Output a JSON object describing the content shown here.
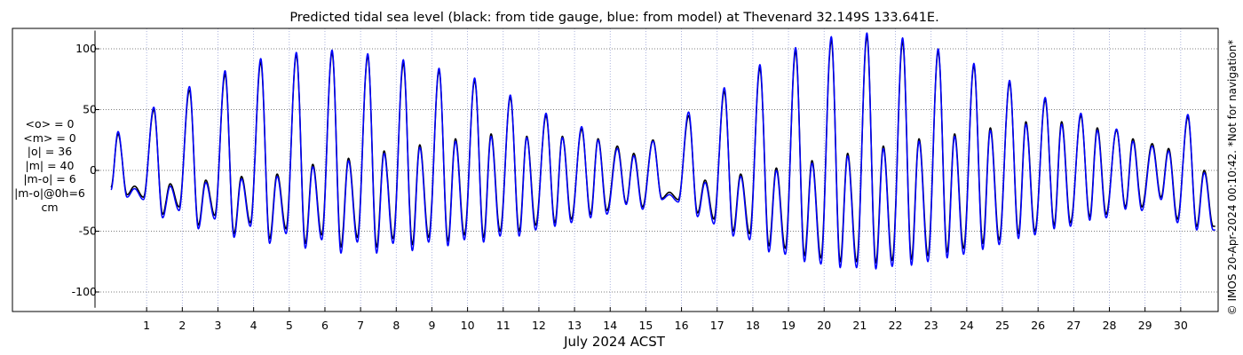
{
  "chart_data": {
    "type": "line",
    "title": "Predicted tidal sea level (black: from tide gauge, blue: from model) at Thevenard 32.149S 133.641E.",
    "xlabel": "July 2024 ACST",
    "ylabel": "",
    "xlim": [
      0,
      31
    ],
    "ylim": [
      -110,
      115
    ],
    "x_ticks": [
      1,
      2,
      3,
      4,
      5,
      6,
      7,
      8,
      9,
      10,
      11,
      12,
      13,
      14,
      15,
      16,
      17,
      18,
      19,
      20,
      21,
      22,
      23,
      24,
      25,
      26,
      27,
      28,
      29,
      30
    ],
    "x_tick_labels": [
      "1",
      "2",
      "3",
      "4",
      "5",
      "6",
      "7",
      "8",
      "9",
      "10",
      "11",
      "12",
      "13",
      "14",
      "15",
      "16",
      "17",
      "18",
      "19",
      "20",
      "21",
      "22",
      "23",
      "24",
      "25",
      "26",
      "27",
      "28",
      "29",
      "30"
    ],
    "y_ticks": [
      -100,
      -50,
      0,
      50,
      100
    ],
    "y_tick_labels": [
      "-100",
      "-50",
      "0",
      "50",
      "100"
    ],
    "grid": true,
    "series": [
      {
        "color": "#000000",
        "tides": [
          {
            "hw1": 30,
            "lw1": -20,
            "hw2": -13,
            "lw2": -22
          },
          {
            "hw1": 50,
            "lw1": -36,
            "hw2": -11,
            "lw2": -30
          },
          {
            "hw1": 66,
            "lw1": -45,
            "hw2": -8,
            "lw2": -37
          },
          {
            "hw1": 79,
            "lw1": -52,
            "hw2": -5,
            "lw2": -43
          },
          {
            "hw1": 89,
            "lw1": -56,
            "hw2": -3,
            "lw2": -48
          },
          {
            "hw1": 95,
            "lw1": -60,
            "hw2": 5,
            "lw2": -53
          },
          {
            "hw1": 97,
            "lw1": -63,
            "hw2": 10,
            "lw2": -55
          },
          {
            "hw1": 94,
            "lw1": -63,
            "hw2": 16,
            "lw2": -56
          },
          {
            "hw1": 88,
            "lw1": -61,
            "hw2": 21,
            "lw2": -55
          },
          {
            "hw1": 82,
            "lw1": -58,
            "hw2": 26,
            "lw2": -53
          },
          {
            "hw1": 74,
            "lw1": -55,
            "hw2": 30,
            "lw2": -50
          },
          {
            "hw1": 60,
            "lw1": -50,
            "hw2": 28,
            "lw2": -45
          },
          {
            "hw1": 45,
            "lw1": -43,
            "hw2": 28,
            "lw2": -40
          },
          {
            "hw1": 34,
            "lw1": -36,
            "hw2": 26,
            "lw2": -33
          },
          {
            "hw1": 20,
            "lw1": -27,
            "hw2": 14,
            "lw2": -30
          },
          {
            "hw1": 25,
            "lw1": -23,
            "hw2": -18,
            "lw2": -24
          },
          {
            "hw1": 45,
            "lw1": -35,
            "hw2": -8,
            "lw2": -40
          },
          {
            "hw1": 65,
            "lw1": -50,
            "hw2": -3,
            "lw2": -52
          },
          {
            "hw1": 84,
            "lw1": -62,
            "hw2": 2,
            "lw2": -64
          },
          {
            "hw1": 98,
            "lw1": -70,
            "hw2": 8,
            "lw2": -72
          },
          {
            "hw1": 107,
            "lw1": -75,
            "hw2": 14,
            "lw2": -75
          },
          {
            "hw1": 110,
            "lw1": -76,
            "hw2": 20,
            "lw2": -74
          },
          {
            "hw1": 106,
            "lw1": -73,
            "hw2": 26,
            "lw2": -70
          },
          {
            "hw1": 98,
            "lw1": -67,
            "hw2": 30,
            "lw2": -64
          },
          {
            "hw1": 86,
            "lw1": -60,
            "hw2": 35,
            "lw2": -57
          },
          {
            "hw1": 72,
            "lw1": -52,
            "hw2": 40,
            "lw2": -50
          },
          {
            "hw1": 58,
            "lw1": -45,
            "hw2": 40,
            "lw2": -43
          },
          {
            "hw1": 45,
            "lw1": -38,
            "hw2": 35,
            "lw2": -36
          },
          {
            "hw1": 33,
            "lw1": -30,
            "hw2": 26,
            "lw2": -30
          },
          {
            "hw1": 22,
            "lw1": -22,
            "hw2": 18,
            "lw2": -40
          },
          {
            "hw1": 44,
            "lw1": -46,
            "hw2": 0,
            "lw2": -46
          }
        ]
      },
      {
        "color": "#0000ff",
        "tides": [
          {
            "hw1": 32,
            "lw1": -22,
            "hw2": -15,
            "lw2": -24
          },
          {
            "hw1": 52,
            "lw1": -39,
            "hw2": -13,
            "lw2": -33
          },
          {
            "hw1": 69,
            "lw1": -48,
            "hw2": -10,
            "lw2": -40
          },
          {
            "hw1": 82,
            "lw1": -55,
            "hw2": -7,
            "lw2": -46
          },
          {
            "hw1": 92,
            "lw1": -60,
            "hw2": -5,
            "lw2": -52
          },
          {
            "hw1": 97,
            "lw1": -64,
            "hw2": 3,
            "lw2": -57
          },
          {
            "hw1": 99,
            "lw1": -68,
            "hw2": 8,
            "lw2": -59
          },
          {
            "hw1": 96,
            "lw1": -68,
            "hw2": 14,
            "lw2": -60
          },
          {
            "hw1": 91,
            "lw1": -66,
            "hw2": 19,
            "lw2": -59
          },
          {
            "hw1": 84,
            "lw1": -62,
            "hw2": 24,
            "lw2": -57
          },
          {
            "hw1": 76,
            "lw1": -59,
            "hw2": 28,
            "lw2": -54
          },
          {
            "hw1": 62,
            "lw1": -54,
            "hw2": 27,
            "lw2": -49
          },
          {
            "hw1": 47,
            "lw1": -46,
            "hw2": 27,
            "lw2": -43
          },
          {
            "hw1": 36,
            "lw1": -39,
            "hw2": 25,
            "lw2": -36
          },
          {
            "hw1": 18,
            "lw1": -28,
            "hw2": 12,
            "lw2": -32
          },
          {
            "hw1": 24,
            "lw1": -24,
            "hw2": -20,
            "lw2": -26
          },
          {
            "hw1": 48,
            "lw1": -38,
            "hw2": -10,
            "lw2": -44
          },
          {
            "hw1": 68,
            "lw1": -54,
            "hw2": -5,
            "lw2": -57
          },
          {
            "hw1": 87,
            "lw1": -67,
            "hw2": 0,
            "lw2": -69
          },
          {
            "hw1": 101,
            "lw1": -75,
            "hw2": 6,
            "lw2": -77
          },
          {
            "hw1": 110,
            "lw1": -80,
            "hw2": 12,
            "lw2": -80
          },
          {
            "hw1": 113,
            "lw1": -81,
            "hw2": 18,
            "lw2": -79
          },
          {
            "hw1": 109,
            "lw1": -78,
            "hw2": 24,
            "lw2": -75
          },
          {
            "hw1": 100,
            "lw1": -72,
            "hw2": 28,
            "lw2": -69
          },
          {
            "hw1": 88,
            "lw1": -65,
            "hw2": 33,
            "lw2": -61
          },
          {
            "hw1": 74,
            "lw1": -56,
            "hw2": 38,
            "lw2": -53
          },
          {
            "hw1": 60,
            "lw1": -48,
            "hw2": 38,
            "lw2": -46
          },
          {
            "hw1": 47,
            "lw1": -41,
            "hw2": 33,
            "lw2": -39
          },
          {
            "hw1": 34,
            "lw1": -32,
            "hw2": 24,
            "lw2": -33
          },
          {
            "hw1": 20,
            "lw1": -24,
            "hw2": 16,
            "lw2": -43
          },
          {
            "hw1": 46,
            "lw1": -49,
            "hw2": -2,
            "lw2": -49
          }
        ]
      }
    ]
  },
  "stats": {
    "line1": "<o> = 0",
    "line2": "<m> = 0",
    "line3": "|o| = 36",
    "line4": "|m| = 40",
    "line5": "|m-o| = 6",
    "line6": "|m-o|@0h=6",
    "line7": "cm"
  },
  "credit": "© IMOS 20-Apr-2024 00:10:42. *Not for navigation*"
}
